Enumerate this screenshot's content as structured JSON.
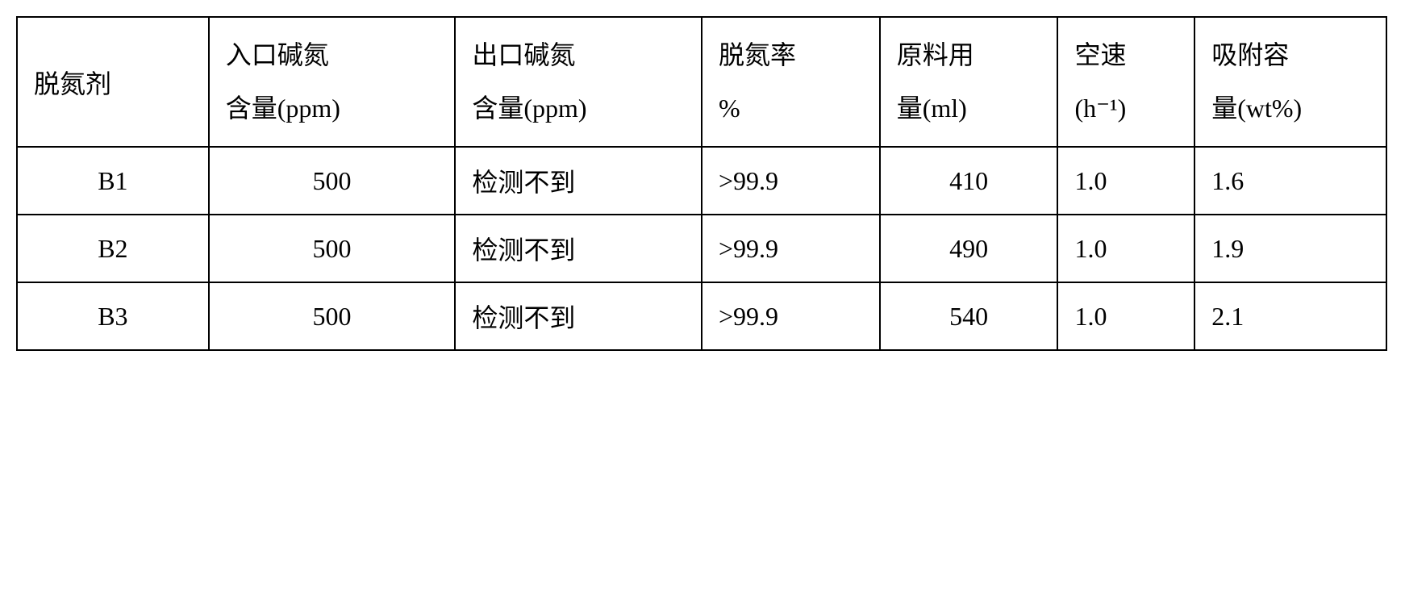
{
  "table": {
    "columns": [
      {
        "main": "脱氮剂",
        "sub": ""
      },
      {
        "main": "入口碱氮",
        "sub": "含量(ppm)"
      },
      {
        "main": "出口碱氮",
        "sub": "含量(ppm)"
      },
      {
        "main": "脱氮率",
        "sub": "%"
      },
      {
        "main": "原料用",
        "sub": "量(ml)"
      },
      {
        "main": "空速",
        "sub": "(h⁻¹)"
      },
      {
        "main": "吸附容",
        "sub": "量(wt%)"
      }
    ],
    "rows": [
      {
        "c0": "B1",
        "c1": "500",
        "c2": "检测不到",
        "c3": ">99.9",
        "c4": "410",
        "c5": "1.0",
        "c6": "1.6"
      },
      {
        "c0": "B2",
        "c1": "500",
        "c2": "检测不到",
        "c3": ">99.9",
        "c4": "490",
        "c5": "1.0",
        "c6": "1.9"
      },
      {
        "c0": "B3",
        "c1": "500",
        "c2": "检测不到",
        "c3": ">99.9",
        "c4": "540",
        "c5": "1.0",
        "c6": "2.1"
      }
    ],
    "border_color": "#000000",
    "background_color": "#ffffff",
    "text_color": "#000000",
    "font_size": 32,
    "cell_padding": 18
  }
}
